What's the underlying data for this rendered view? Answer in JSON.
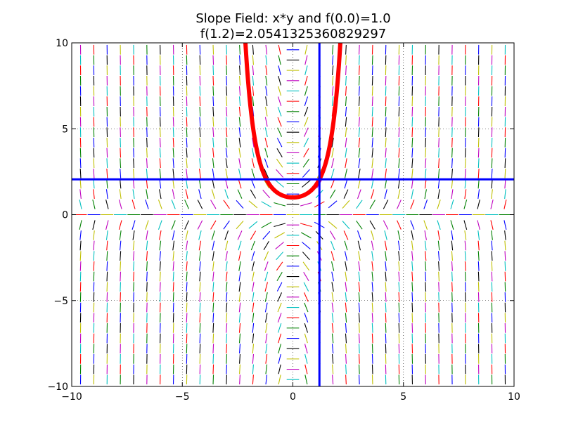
{
  "chart_data": {
    "type": "line",
    "title_lines": [
      "Slope Field: x*y and f(0.0)=1.0",
      "f(1.2)=2.0541325360829297"
    ],
    "xlabel": "",
    "ylabel": "",
    "xlim": [
      -10,
      10
    ],
    "ylim": [
      -10,
      10
    ],
    "x_ticks": [
      -10,
      -5,
      0,
      5,
      10
    ],
    "y_ticks": [
      -10,
      -5,
      0,
      5,
      10
    ],
    "x_tick_labels": [
      "−10",
      "−5",
      "0",
      "5",
      "10"
    ],
    "y_tick_labels": [
      "−10",
      "−5",
      "0",
      "5",
      "10"
    ],
    "grid": "dotted",
    "slope_field": {
      "expression": "x*y",
      "x_start": -9.6,
      "x_end": 9.6,
      "x_step": 0.6,
      "y_start": -9.6,
      "y_end": 9.6,
      "y_step": 0.6,
      "colors": [
        "#0000ff",
        "#008000",
        "#ff0000",
        "#00bfbf",
        "#bf00bf",
        "#bfbf00",
        "#000000"
      ]
    },
    "solution_curve": {
      "x0": 0.0,
      "y0": 1.0,
      "color": "#ff0000",
      "x_range": [
        -2.2,
        2.2
      ]
    },
    "evaluation_point": {
      "x": 1.2,
      "y": 2.0541325360829297,
      "color": "#0000ff"
    }
  }
}
